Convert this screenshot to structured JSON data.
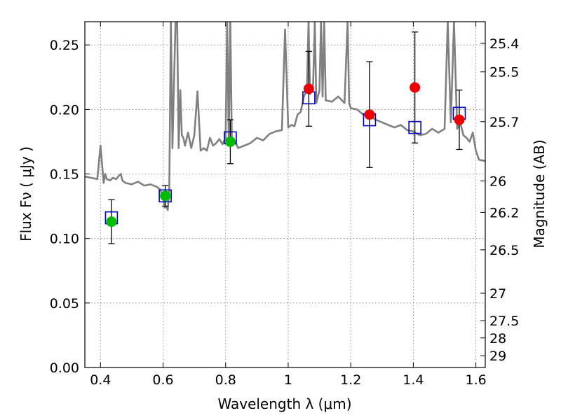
{
  "chart_data": {
    "type": "scatter",
    "title": "",
    "xlabel": "Wavelength  λ (μm)",
    "ylabel": "Flux  Fν  ( μJy )",
    "y2label": "Magnitude (AB)",
    "xlim": [
      0.35,
      1.63
    ],
    "ylim": [
      0.0,
      0.268
    ],
    "grid": true,
    "x_ticks": [
      0.4,
      0.6,
      0.8,
      1.0,
      1.2,
      1.4,
      1.6
    ],
    "x_tick_labels": [
      "0.4",
      "0.6",
      "0.8",
      "1",
      "1.2",
      "1.4",
      "1.6"
    ],
    "y_ticks": [
      0.0,
      0.05,
      0.1,
      0.15,
      0.2,
      0.25
    ],
    "y_tick_labels": [
      "0.00",
      "0.05",
      "0.10",
      "0.15",
      "0.20",
      "0.25"
    ],
    "y2_tick_labels": [
      "25.4",
      "25.5",
      "25.7",
      "26",
      "26.2",
      "26.5",
      "27",
      "27.5",
      "28",
      "29"
    ],
    "y2_tick_mags": [
      25.4,
      25.5,
      25.7,
      26.0,
      26.2,
      26.5,
      27.0,
      27.5,
      28.0,
      29.0
    ],
    "colors": {
      "model": "#808080",
      "model_points": "#0000cc",
      "observed_a": "#00bb00",
      "observed_b": "#ee0000",
      "errorbar": "#000000",
      "grid": "#777777"
    },
    "series": [
      {
        "type": "line",
        "x": [
          0.35,
          0.37,
          0.39,
          0.4,
          0.41,
          0.415,
          0.42,
          0.43,
          0.44,
          0.45,
          0.46,
          0.465,
          0.47,
          0.48,
          0.5,
          0.52,
          0.54,
          0.56,
          0.58,
          0.59,
          0.6,
          0.605,
          0.61,
          0.615,
          0.62,
          0.625,
          0.63,
          0.635,
          0.64,
          0.645,
          0.65,
          0.655,
          0.66,
          0.665,
          0.67,
          0.68,
          0.69,
          0.7,
          0.71,
          0.72,
          0.73,
          0.74,
          0.75,
          0.76,
          0.77,
          0.78,
          0.79,
          0.8,
          0.805,
          0.81,
          0.815,
          0.82,
          0.83,
          0.84,
          0.86,
          0.88,
          0.9,
          0.92,
          0.94,
          0.96,
          0.98,
          0.99,
          1.0,
          1.01,
          1.02,
          1.03,
          1.04,
          1.05,
          1.06,
          1.065,
          1.07,
          1.08,
          1.085,
          1.09,
          1.1,
          1.105,
          1.11,
          1.115,
          1.12,
          1.14,
          1.16,
          1.18,
          1.19,
          1.195,
          1.2,
          1.22,
          1.24,
          1.26,
          1.28,
          1.3,
          1.32,
          1.34,
          1.36,
          1.38,
          1.4,
          1.42,
          1.44,
          1.46,
          1.48,
          1.5,
          1.51,
          1.52,
          1.53,
          1.54,
          1.55,
          1.56,
          1.57,
          1.58,
          1.59,
          1.6,
          1.61,
          1.63
        ],
        "y": [
          0.148,
          0.147,
          0.146,
          0.172,
          0.143,
          0.15,
          0.146,
          0.145,
          0.147,
          0.146,
          0.149,
          0.15,
          0.145,
          0.143,
          0.142,
          0.144,
          0.141,
          0.142,
          0.14,
          0.138,
          0.132,
          0.124,
          0.125,
          0.122,
          0.138,
          0.27,
          0.17,
          0.22,
          0.27,
          0.27,
          0.17,
          0.215,
          0.18,
          0.178,
          0.172,
          0.182,
          0.17,
          0.18,
          0.214,
          0.168,
          0.17,
          0.168,
          0.178,
          0.172,
          0.174,
          0.177,
          0.173,
          0.178,
          0.27,
          0.175,
          0.27,
          0.172,
          0.175,
          0.17,
          0.172,
          0.174,
          0.178,
          0.176,
          0.181,
          0.183,
          0.184,
          0.262,
          0.186,
          0.188,
          0.187,
          0.196,
          0.198,
          0.21,
          0.215,
          0.268,
          0.212,
          0.22,
          0.268,
          0.205,
          0.215,
          0.268,
          0.21,
          0.268,
          0.207,
          0.206,
          0.21,
          0.205,
          0.268,
          0.205,
          0.201,
          0.2,
          0.196,
          0.195,
          0.192,
          0.19,
          0.188,
          0.186,
          0.188,
          0.184,
          0.183,
          0.18,
          0.181,
          0.185,
          0.182,
          0.185,
          0.268,
          0.19,
          0.268,
          0.185,
          0.19,
          0.18,
          0.178,
          0.175,
          0.182,
          0.168,
          0.161,
          0.16
        ]
      },
      {
        "type": "scatter",
        "marker": "square",
        "x": [
          0.435,
          0.607,
          0.815,
          1.066,
          1.26,
          1.405,
          1.547
        ],
        "y": [
          0.116,
          0.133,
          0.178,
          0.209,
          0.192,
          0.186,
          0.197
        ]
      },
      {
        "type": "scatter",
        "marker": "circle",
        "color": "observed_a",
        "x": [
          0.435,
          0.607,
          0.815
        ],
        "y": [
          0.113,
          0.133,
          0.175
        ],
        "yerr": [
          0.017,
          0.008,
          0.017
        ]
      },
      {
        "type": "scatter",
        "marker": "circle",
        "color": "observed_b",
        "x": [
          1.066,
          1.26,
          1.405,
          1.547
        ],
        "y": [
          0.216,
          0.196,
          0.217,
          0.192
        ],
        "yerr": [
          0.029,
          0.041,
          0.043,
          0.023
        ]
      }
    ]
  }
}
